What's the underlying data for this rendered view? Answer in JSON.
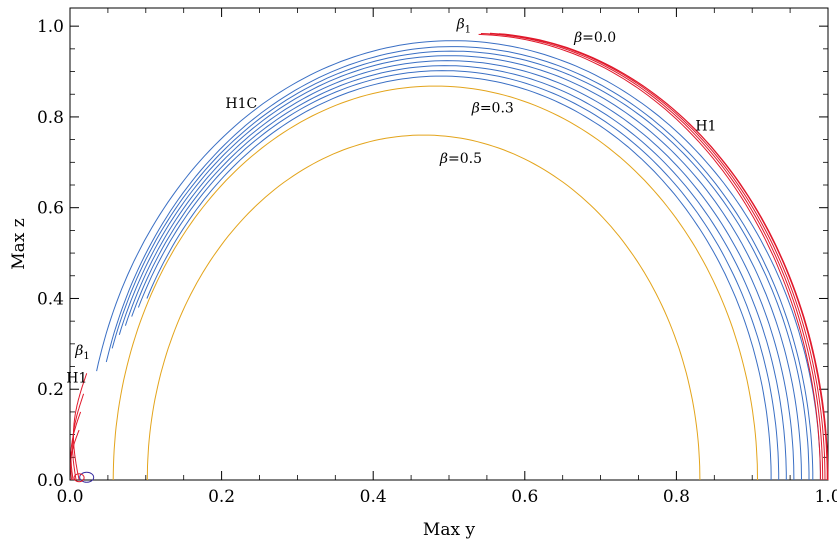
{
  "chart_data": {
    "type": "line",
    "title": "",
    "xlabel": "Max y",
    "ylabel": "Max z",
    "xlim": [
      0.0,
      1.0
    ],
    "ylim": [
      0.0,
      1.04
    ],
    "grid": false,
    "x_ticks": [
      "0.0",
      "0.2",
      "0.4",
      "0.6",
      "0.8",
      "1.0"
    ],
    "y_ticks": [
      "0.0",
      "0.2",
      "0.4",
      "0.6",
      "0.8",
      "1.0"
    ],
    "colors": {
      "H1": "#e0192b",
      "H1C": "#3a6fc4",
      "beta_orange": "#e3a41b",
      "small_loop": "#3a2ea0"
    },
    "series": [
      {
        "group": "H1C",
        "color": "#3a6fc4",
        "arcs": [
          {
            "x0": 0.02,
            "x1": 0.99,
            "peak": 0.968,
            "left_end_z": 0.24,
            "right_end_z": 0.0
          },
          {
            "x0": 0.03,
            "x1": 0.98,
            "peak": 0.955,
            "left_end_z": 0.26,
            "right_end_z": 0.0
          },
          {
            "x0": 0.033,
            "x1": 0.975,
            "peak": 0.945,
            "left_end_z": 0.29,
            "right_end_z": 0.0
          },
          {
            "x0": 0.037,
            "x1": 0.965,
            "peak": 0.935,
            "left_end_z": 0.32,
            "right_end_z": 0.0
          },
          {
            "x0": 0.041,
            "x1": 0.955,
            "peak": 0.924,
            "left_end_z": 0.34,
            "right_end_z": 0.0
          },
          {
            "x0": 0.045,
            "x1": 0.945,
            "peak": 0.913,
            "left_end_z": 0.36,
            "right_end_z": 0.0
          },
          {
            "x0": 0.049,
            "x1": 0.935,
            "peak": 0.902,
            "left_end_z": 0.38,
            "right_end_z": 0.0
          },
          {
            "x0": 0.055,
            "x1": 0.925,
            "peak": 0.89,
            "left_end_z": 0.4,
            "right_end_z": 0.0
          }
        ]
      },
      {
        "group": "beta=0.3",
        "color": "#e3a41b",
        "arcs": [
          {
            "x0": 0.057,
            "x1": 0.907,
            "peak": 0.868,
            "left_end_z": 0.0,
            "right_end_z": 0.0
          }
        ]
      },
      {
        "group": "beta=0.5",
        "color": "#e3a41b",
        "arcs": [
          {
            "x0": 0.102,
            "x1": 0.831,
            "peak": 0.76,
            "left_end_z": 0.0,
            "right_end_z": 0.0
          }
        ]
      },
      {
        "group": "H1",
        "color": "#e0192b",
        "arcs": [
          {
            "x0": 0.534,
            "x1": 0.99,
            "peak_x": 0.534,
            "peak": 0.982,
            "right_end_z": 0.0
          },
          {
            "x0": 0.54,
            "x1": 0.993,
            "peak_x": 0.54,
            "peak": 0.984,
            "right_end_z": 0.0
          },
          {
            "x0": 0.55,
            "x1": 0.996,
            "peak_x": 0.55,
            "peak": 0.985,
            "right_end_z": 0.0
          },
          {
            "x0": 0.56,
            "x1": 0.999,
            "peak_x": 0.56,
            "peak": 0.985,
            "right_end_z": 0.0
          },
          {
            "x0": 0.57,
            "x1": 1.0,
            "peak_x": 0.57,
            "peak": 0.983,
            "right_end_z": 0.0
          }
        ]
      }
    ],
    "annotations": [
      {
        "id": "beta1-top",
        "text": "β",
        "sub": "1",
        "x": 0.51,
        "z": 0.995
      },
      {
        "id": "beta00",
        "text": "β",
        "rest": "=0.0",
        "x": 0.665,
        "z": 0.965
      },
      {
        "id": "h1c",
        "text": "H1C",
        "x": 0.205,
        "z": 0.82
      },
      {
        "id": "beta03",
        "text": "β",
        "rest": "=0.3",
        "x": 0.53,
        "z": 0.81
      },
      {
        "id": "h1-right",
        "text": "H1",
        "x": 0.825,
        "z": 0.77
      },
      {
        "id": "beta05",
        "text": "β",
        "rest": "=0.5",
        "x": 0.488,
        "z": 0.698
      },
      {
        "id": "beta1-left",
        "text": "β",
        "sub": "1",
        "x": 0.007,
        "z": 0.275
      },
      {
        "id": "h1-left",
        "text": "H1",
        "x": -0.005,
        "z": 0.215
      }
    ]
  }
}
